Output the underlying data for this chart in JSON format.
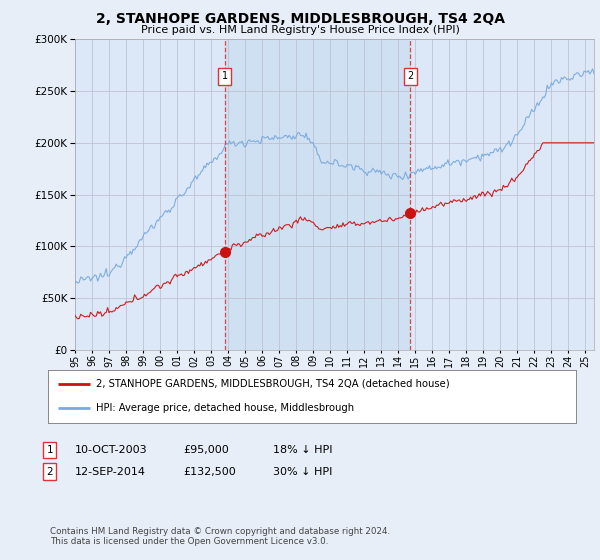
{
  "title": "2, STANHOPE GARDENS, MIDDLESBROUGH, TS4 2QA",
  "subtitle": "Price paid vs. HM Land Registry's House Price Index (HPI)",
  "legend_line1": "2, STANHOPE GARDENS, MIDDLESBROUGH, TS4 2QA (detached house)",
  "legend_line2": "HPI: Average price, detached house, Middlesbrough",
  "sale1_date": "10-OCT-2003",
  "sale1_price": "£95,000",
  "sale1_hpi": "18% ↓ HPI",
  "sale1_year": 2003.79,
  "sale1_value": 95000,
  "sale2_date": "12-SEP-2014",
  "sale2_price": "£132,500",
  "sale2_hpi": "30% ↓ HPI",
  "sale2_year": 2014.71,
  "sale2_value": 132500,
  "footer": "Contains HM Land Registry data © Crown copyright and database right 2024.\nThis data is licensed under the Open Government Licence v3.0.",
  "bg_color": "#e8eef8",
  "plot_bg": "#dce8f8",
  "between_fill": "#ddeeff",
  "hpi_color": "#7aaadd",
  "price_color": "#cc1111",
  "vline_color": "#dd3333",
  "ylim": [
    0,
    300000
  ],
  "xlim_start": 1995,
  "xlim_end": 2025.5
}
